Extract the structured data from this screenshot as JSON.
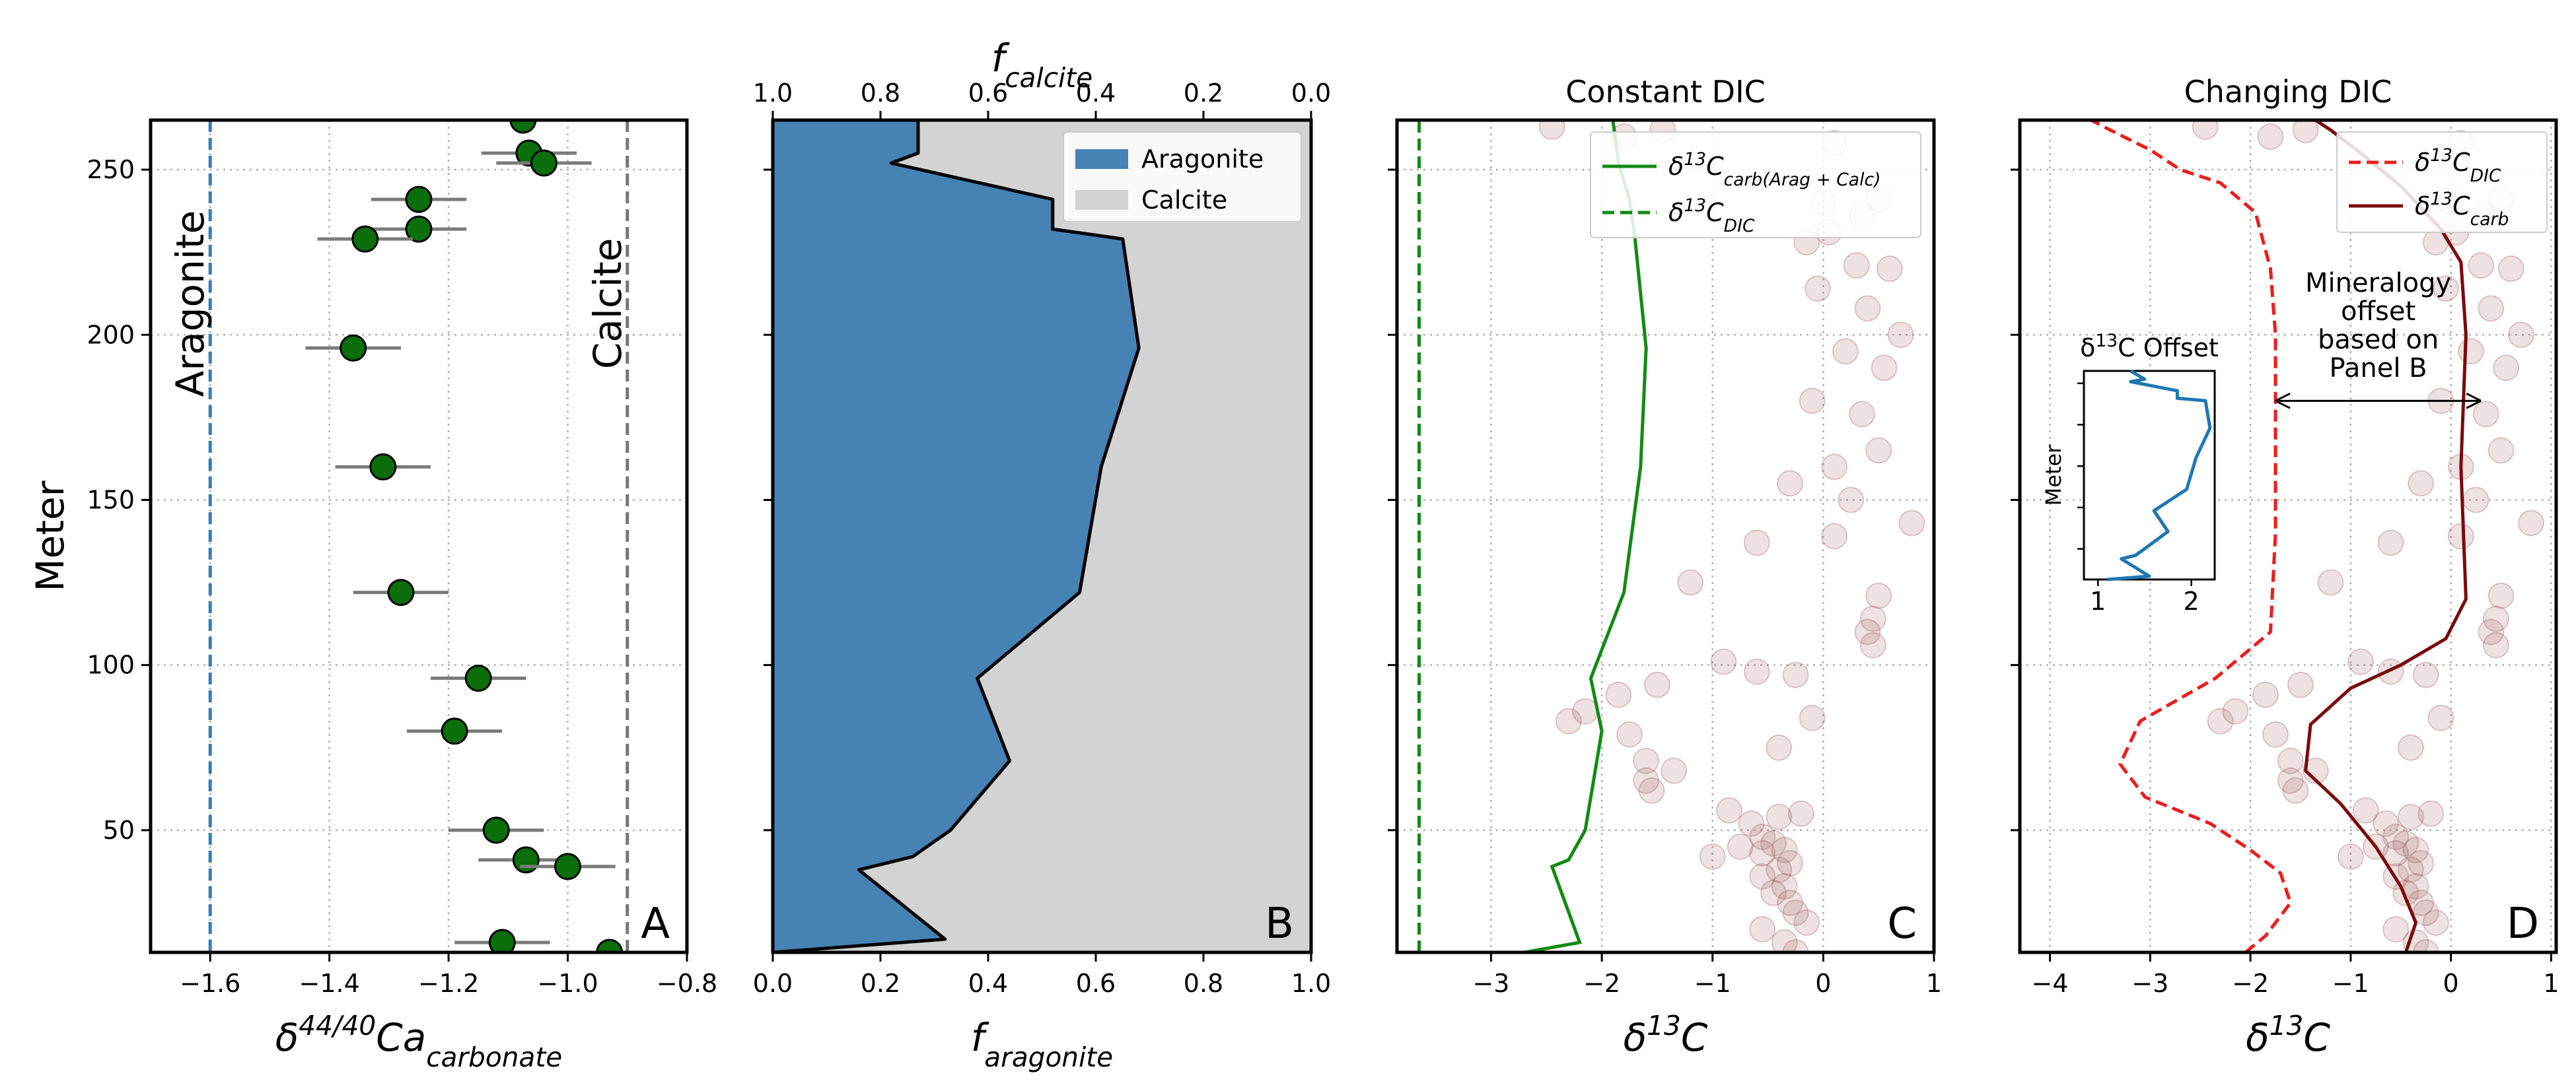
{
  "chart_data": [
    {
      "panel": "A",
      "type": "scatter",
      "panel_letter": "A",
      "xlabel": "δ44/40Ca",
      "xlabel_sub": "carbonate",
      "ylabel": "Meter",
      "xlim": [
        -1.7,
        -0.8
      ],
      "ylim": [
        13,
        265
      ],
      "xticks": [
        -1.6,
        -1.4,
        -1.2,
        -1.0,
        -0.8
      ],
      "xtick_labels": [
        "−1.6",
        "−1.4",
        "−1.2",
        "−1.0",
        "−0.8"
      ],
      "yticks": [
        50,
        100,
        150,
        200,
        250
      ],
      "ytick_labels": [
        "50",
        "100",
        "150",
        "200",
        "250"
      ],
      "grid": true,
      "reference_lines": [
        {
          "x": -1.6,
          "label": "Aragonite",
          "color": "#3a7ab8"
        },
        {
          "x": -0.9,
          "label": "Calcite",
          "color": "#777777"
        }
      ],
      "marker_color": "#0a6e0a",
      "points": [
        {
          "x": -1.075,
          "y": 265,
          "xerr": 0
        },
        {
          "x": -1.065,
          "y": 255,
          "xerr": 0.08
        },
        {
          "x": -1.04,
          "y": 252,
          "xerr": 0.08
        },
        {
          "x": -1.25,
          "y": 241,
          "xerr": 0.08
        },
        {
          "x": -1.25,
          "y": 232,
          "xerr": 0.08
        },
        {
          "x": -1.34,
          "y": 229,
          "xerr": 0.08
        },
        {
          "x": -1.36,
          "y": 196,
          "xerr": 0.08
        },
        {
          "x": -1.31,
          "y": 160,
          "xerr": 0.08
        },
        {
          "x": -1.28,
          "y": 122,
          "xerr": 0.08
        },
        {
          "x": -1.15,
          "y": 96,
          "xerr": 0.08
        },
        {
          "x": -1.19,
          "y": 80,
          "xerr": 0.08
        },
        {
          "x": -1.12,
          "y": 50,
          "xerr": 0.08
        },
        {
          "x": -1.07,
          "y": 41,
          "xerr": 0.08
        },
        {
          "x": -1.0,
          "y": 39,
          "xerr": 0.08
        },
        {
          "x": -1.11,
          "y": 16,
          "xerr": 0.08
        },
        {
          "x": -0.93,
          "y": 13,
          "xerr": 0.08
        }
      ]
    },
    {
      "panel": "B",
      "type": "area",
      "panel_letter": "B",
      "xlabel": "f",
      "xlabel_sub": "aragonite",
      "top_xlabel": "f",
      "top_xlabel_sub": "calcite",
      "xlim": [
        0,
        1
      ],
      "ylim": [
        13,
        265
      ],
      "xticks": [
        0,
        0.2,
        0.4,
        0.6,
        0.8,
        1.0
      ],
      "xtick_labels": [
        "0.0",
        "0.2",
        "0.4",
        "0.6",
        "0.8",
        "1.0"
      ],
      "top_xtick_labels": [
        "1.0",
        "0.8",
        "0.6",
        "0.4",
        "0.2",
        "0.0"
      ],
      "yticks": [
        50,
        100,
        150,
        200,
        250
      ],
      "grid": false,
      "legend_position": "top-right",
      "series": [
        {
          "name": "Aragonite",
          "color": "#4682b4"
        },
        {
          "name": "Calcite",
          "color": "#d3d3d3"
        }
      ],
      "boundary": [
        {
          "y": 13,
          "x": 0.0
        },
        {
          "y": 17,
          "x": 0.32
        },
        {
          "y": 38,
          "x": 0.16
        },
        {
          "y": 42,
          "x": 0.26
        },
        {
          "y": 50,
          "x": 0.33
        },
        {
          "y": 71,
          "x": 0.44
        },
        {
          "y": 96,
          "x": 0.38
        },
        {
          "y": 122,
          "x": 0.57
        },
        {
          "y": 160,
          "x": 0.61
        },
        {
          "y": 196,
          "x": 0.68
        },
        {
          "y": 229,
          "x": 0.65
        },
        {
          "y": 232,
          "x": 0.52
        },
        {
          "y": 241,
          "x": 0.52
        },
        {
          "y": 252,
          "x": 0.22
        },
        {
          "y": 255,
          "x": 0.27
        },
        {
          "y": 265,
          "x": 0.27
        }
      ]
    },
    {
      "panel": "C",
      "type": "line",
      "panel_letter": "C",
      "title": "Constant DIC",
      "xlabel": "δ13C",
      "xlim": [
        -3.85,
        1.0
      ],
      "ylim": [
        13,
        265
      ],
      "xticks": [
        -3,
        -2,
        -1,
        0,
        1
      ],
      "xtick_labels": [
        "−3",
        "−2",
        "−1",
        "0",
        "1"
      ],
      "yticks": [
        50,
        100,
        150,
        200,
        250
      ],
      "grid": true,
      "legend_position": "top-right",
      "series": [
        {
          "name": "δ13Ccarb(Arag + Calc)",
          "color": "#138a13",
          "style": "solid",
          "points": [
            {
              "x": -2.7,
              "y": 13
            },
            {
              "x": -2.2,
              "y": 16
            },
            {
              "x": -2.45,
              "y": 39
            },
            {
              "x": -2.3,
              "y": 41
            },
            {
              "x": -2.15,
              "y": 50
            },
            {
              "x": -2.0,
              "y": 80
            },
            {
              "x": -2.1,
              "y": 96
            },
            {
              "x": -1.8,
              "y": 122
            },
            {
              "x": -1.65,
              "y": 160
            },
            {
              "x": -1.6,
              "y": 196
            },
            {
              "x": -1.7,
              "y": 229
            },
            {
              "x": -1.75,
              "y": 241
            },
            {
              "x": -1.85,
              "y": 252
            },
            {
              "x": -1.9,
              "y": 265
            }
          ]
        },
        {
          "name": "δ13CDIC",
          "color": "#138a13",
          "style": "dashed",
          "points": [
            {
              "x": -3.65,
              "y": 13
            },
            {
              "x": -3.65,
              "y": 265
            }
          ]
        }
      ]
    },
    {
      "panel": "D",
      "type": "line",
      "panel_letter": "D",
      "title": "Changing DIC",
      "xlabel": "δ13C",
      "xlim": [
        -4.3,
        1.05
      ],
      "ylim": [
        13,
        265
      ],
      "xticks": [
        -4,
        -3,
        -2,
        -1,
        0,
        1
      ],
      "xtick_labels": [
        "−4",
        "−3",
        "−2",
        "−1",
        "0",
        "1"
      ],
      "yticks": [
        50,
        100,
        150,
        200,
        250
      ],
      "grid": true,
      "legend_position": "top-right",
      "annotation": "Mineralogy\noffset\nbased on\nPanel B",
      "annotation_arrow": {
        "x1": -1.75,
        "x2": 0.3,
        "y": 180
      },
      "series": [
        {
          "name": "δ13CDIC",
          "color": "#ee1c1c",
          "style": "dashed",
          "points": [
            {
              "x": -2.05,
              "y": 13
            },
            {
              "x": -1.85,
              "y": 18
            },
            {
              "x": -1.6,
              "y": 28
            },
            {
              "x": -1.7,
              "y": 37
            },
            {
              "x": -2.0,
              "y": 44
            },
            {
              "x": -2.4,
              "y": 52
            },
            {
              "x": -3.05,
              "y": 60
            },
            {
              "x": -3.3,
              "y": 70
            },
            {
              "x": -3.1,
              "y": 83
            },
            {
              "x": -2.35,
              "y": 96
            },
            {
              "x": -1.8,
              "y": 110
            },
            {
              "x": -1.75,
              "y": 140
            },
            {
              "x": -1.75,
              "y": 200
            },
            {
              "x": -1.8,
              "y": 220
            },
            {
              "x": -1.95,
              "y": 237
            },
            {
              "x": -2.3,
              "y": 246
            },
            {
              "x": -2.7,
              "y": 250
            },
            {
              "x": -3.0,
              "y": 256
            },
            {
              "x": -3.4,
              "y": 262
            },
            {
              "x": -3.65,
              "y": 266
            }
          ]
        },
        {
          "name": "δ13Ccarb",
          "color": "#7a0a0a",
          "style": "solid",
          "points": [
            {
              "x": -0.45,
              "y": 13
            },
            {
              "x": -0.35,
              "y": 22
            },
            {
              "x": -0.5,
              "y": 33
            },
            {
              "x": -0.75,
              "y": 45
            },
            {
              "x": -1.1,
              "y": 58
            },
            {
              "x": -1.45,
              "y": 68
            },
            {
              "x": -1.4,
              "y": 82
            },
            {
              "x": -1.0,
              "y": 93
            },
            {
              "x": -0.5,
              "y": 100
            },
            {
              "x": -0.05,
              "y": 108
            },
            {
              "x": 0.15,
              "y": 120
            },
            {
              "x": 0.1,
              "y": 160
            },
            {
              "x": 0.15,
              "y": 200
            },
            {
              "x": 0.1,
              "y": 222
            },
            {
              "x": -0.1,
              "y": 232
            },
            {
              "x": -0.5,
              "y": 245
            },
            {
              "x": -0.9,
              "y": 255
            },
            {
              "x": -1.2,
              "y": 262
            },
            {
              "x": -1.4,
              "y": 266
            }
          ]
        }
      ],
      "inset": {
        "title": "δ13C Offset",
        "ylabel": "Meter",
        "xlim": [
          0.85,
          2.25
        ],
        "xticks": [
          1,
          2
        ],
        "xtick_labels": [
          "1",
          "2"
        ],
        "color": "#1f77b4",
        "points": [
          {
            "x": 1.1,
            "y": 13
          },
          {
            "x": 1.55,
            "y": 17
          },
          {
            "x": 1.25,
            "y": 38
          },
          {
            "x": 1.4,
            "y": 42
          },
          {
            "x": 1.5,
            "y": 50
          },
          {
            "x": 1.75,
            "y": 71
          },
          {
            "x": 1.6,
            "y": 96
          },
          {
            "x": 1.95,
            "y": 122
          },
          {
            "x": 2.05,
            "y": 160
          },
          {
            "x": 2.2,
            "y": 196
          },
          {
            "x": 2.15,
            "y": 229
          },
          {
            "x": 1.85,
            "y": 232
          },
          {
            "x": 1.85,
            "y": 241
          },
          {
            "x": 1.35,
            "y": 252
          },
          {
            "x": 1.5,
            "y": 255
          },
          {
            "x": 1.35,
            "y": 265
          }
        ]
      }
    }
  ],
  "scatter_background": {
    "color": "#9b5a5a",
    "points": [
      {
        "x": 0.1,
        "y": 258
      },
      {
        "x": 0.0,
        "y": 240
      },
      {
        "x": 0.5,
        "y": 241
      },
      {
        "x": 0.35,
        "y": 236
      },
      {
        "x": 0.05,
        "y": 231
      },
      {
        "x": -0.15,
        "y": 228
      },
      {
        "x": 0.3,
        "y": 221
      },
      {
        "x": 0.6,
        "y": 220
      },
      {
        "x": -0.05,
        "y": 214
      },
      {
        "x": 0.4,
        "y": 208
      },
      {
        "x": 0.7,
        "y": 200
      },
      {
        "x": 0.2,
        "y": 195
      },
      {
        "x": 0.55,
        "y": 190
      },
      {
        "x": -0.1,
        "y": 180
      },
      {
        "x": 0.35,
        "y": 176
      },
      {
        "x": 0.5,
        "y": 165
      },
      {
        "x": 0.1,
        "y": 160
      },
      {
        "x": -0.3,
        "y": 155
      },
      {
        "x": 0.25,
        "y": 150
      },
      {
        "x": 0.8,
        "y": 143
      },
      {
        "x": -0.6,
        "y": 137
      },
      {
        "x": 0.1,
        "y": 139
      },
      {
        "x": -1.2,
        "y": 125
      },
      {
        "x": 0.5,
        "y": 121
      },
      {
        "x": 0.45,
        "y": 114
      },
      {
        "x": 0.4,
        "y": 110
      },
      {
        "x": 0.45,
        "y": 106
      },
      {
        "x": -0.9,
        "y": 101
      },
      {
        "x": -0.25,
        "y": 97
      },
      {
        "x": -0.6,
        "y": 98
      },
      {
        "x": -1.5,
        "y": 94
      },
      {
        "x": -1.85,
        "y": 91
      },
      {
        "x": -2.15,
        "y": 86
      },
      {
        "x": -2.3,
        "y": 83
      },
      {
        "x": -0.1,
        "y": 84
      },
      {
        "x": -1.75,
        "y": 79
      },
      {
        "x": -0.4,
        "y": 75
      },
      {
        "x": -1.6,
        "y": 71
      },
      {
        "x": -1.35,
        "y": 68
      },
      {
        "x": -1.6,
        "y": 65
      },
      {
        "x": -1.55,
        "y": 62
      },
      {
        "x": -0.85,
        "y": 56
      },
      {
        "x": -0.65,
        "y": 52
      },
      {
        "x": -0.4,
        "y": 54
      },
      {
        "x": -0.2,
        "y": 55
      },
      {
        "x": -0.55,
        "y": 48
      },
      {
        "x": -0.75,
        "y": 45
      },
      {
        "x": -0.45,
        "y": 46
      },
      {
        "x": -0.35,
        "y": 44
      },
      {
        "x": -0.55,
        "y": 43
      },
      {
        "x": -1.0,
        "y": 42
      },
      {
        "x": -0.3,
        "y": 40
      },
      {
        "x": -0.4,
        "y": 38
      },
      {
        "x": -0.55,
        "y": 36
      },
      {
        "x": -0.35,
        "y": 33
      },
      {
        "x": -0.45,
        "y": 31
      },
      {
        "x": -0.3,
        "y": 28
      },
      {
        "x": -0.25,
        "y": 25
      },
      {
        "x": -0.15,
        "y": 22
      },
      {
        "x": -0.55,
        "y": 20
      },
      {
        "x": -0.35,
        "y": 16
      },
      {
        "x": -0.25,
        "y": 13
      },
      {
        "x": -2.45,
        "y": 263
      },
      {
        "x": -1.8,
        "y": 260
      },
      {
        "x": -1.45,
        "y": 262
      }
    ]
  }
}
